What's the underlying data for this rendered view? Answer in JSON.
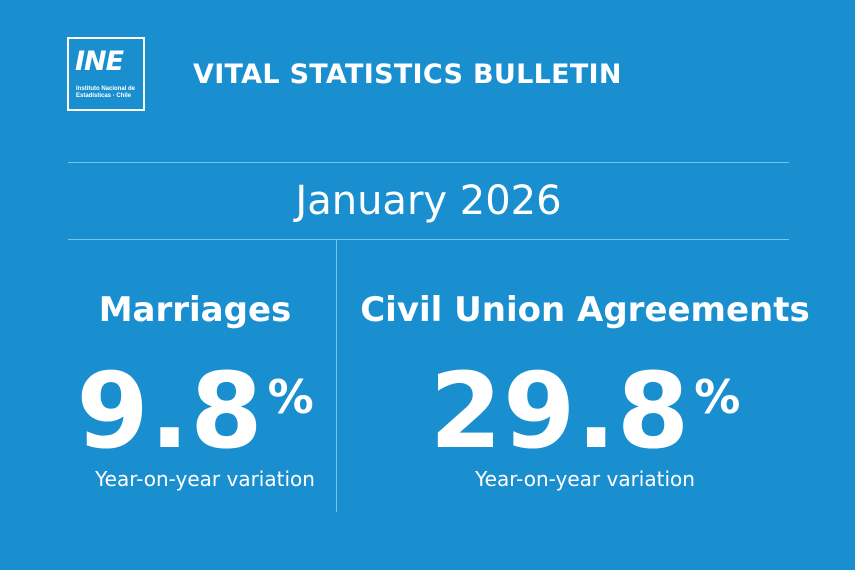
{
  "logo": {
    "mark": "INE",
    "line1": "Instituto Nacional de",
    "line2": "Estadísticas · Chile"
  },
  "header": {
    "title": "VITAL STATISTICS BULLETIN"
  },
  "period": "January 2026",
  "marriages": {
    "title": "Marriages",
    "value": "9.8",
    "unit": "%",
    "caption": "Year-on-year variation"
  },
  "civil_unions": {
    "title": "Civil Union Agreements",
    "value": "29.8",
    "unit": "%",
    "caption": "Year-on-year variation"
  },
  "colors": {
    "background": "#1a8fd0",
    "text": "#ffffff",
    "rule": "#7cc1e8"
  }
}
